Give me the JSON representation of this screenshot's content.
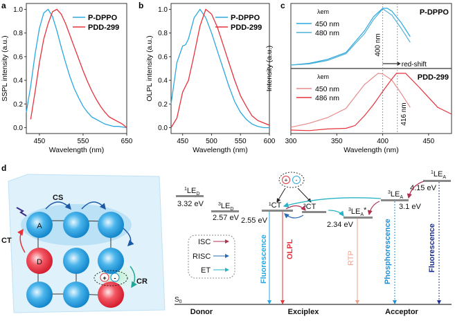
{
  "panel_labels": {
    "a": "a",
    "b": "b",
    "c": "c",
    "d": "d"
  },
  "chart_data": [
    {
      "id": "a",
      "type": "line",
      "xlabel": "Wavelength (nm)",
      "ylabel": "SSPL intensity (a.u.)",
      "xlim": [
        420,
        650
      ],
      "ylim": [
        -0.05,
        1.05
      ],
      "xticks": [
        450,
        550,
        650
      ],
      "yticks": [
        0.0,
        0.2,
        0.4,
        0.6,
        0.8,
        1.0
      ],
      "ytick_labels": [
        "0.0",
        "0.2",
        "0.4",
        "0.6",
        "0.8",
        "1.0"
      ],
      "legend_position": "top-right",
      "series": [
        {
          "name": "P-DPPO",
          "color": "#29a8e0",
          "x": [
            420,
            430,
            440,
            450,
            460,
            470,
            480,
            490,
            500,
            510,
            520,
            530,
            540,
            550,
            560,
            570,
            580,
            590,
            600,
            610,
            620,
            630,
            640,
            650
          ],
          "y": [
            0.13,
            0.35,
            0.62,
            0.84,
            0.97,
            1.0,
            0.94,
            0.82,
            0.68,
            0.55,
            0.43,
            0.33,
            0.25,
            0.18,
            0.13,
            0.09,
            0.07,
            0.05,
            0.03,
            0.02,
            0.01,
            0.01,
            0.005,
            0.0
          ]
        },
        {
          "name": "PDD-299",
          "color": "#e8313b",
          "x": [
            430,
            440,
            450,
            460,
            470,
            480,
            490,
            500,
            510,
            520,
            530,
            540,
            550,
            560,
            570,
            580,
            590,
            600,
            610,
            620,
            630,
            640,
            650
          ],
          "y": [
            0.07,
            0.3,
            0.55,
            0.75,
            0.88,
            0.98,
            1.0,
            0.96,
            0.88,
            0.78,
            0.68,
            0.58,
            0.48,
            0.39,
            0.31,
            0.24,
            0.18,
            0.13,
            0.09,
            0.07,
            0.05,
            0.03,
            0.0
          ]
        }
      ]
    },
    {
      "id": "b",
      "type": "line",
      "xlabel": "Wavelength (nm)",
      "ylabel": "OLPL intensity (a.u.)",
      "xlim": [
        430,
        600
      ],
      "ylim": [
        -0.05,
        1.05
      ],
      "xticks": [
        450,
        500,
        550,
        600
      ],
      "yticks": [
        0.0,
        0.2,
        0.4,
        0.6,
        0.8,
        1.0
      ],
      "ytick_labels": [
        "0.0",
        "0.2",
        "0.4",
        "0.6",
        "0.8",
        "1.0"
      ],
      "legend_position": "top-right",
      "series": [
        {
          "name": "P-DPPO",
          "color": "#29a8e0",
          "x": [
            430,
            440,
            450,
            455,
            460,
            470,
            480,
            490,
            500,
            510,
            520,
            530,
            540,
            550,
            560,
            570,
            580,
            590,
            600
          ],
          "y": [
            0.2,
            0.55,
            0.69,
            0.7,
            0.75,
            0.93,
            1.0,
            0.93,
            0.8,
            0.65,
            0.5,
            0.35,
            0.22,
            0.13,
            0.07,
            0.03,
            0.01,
            0.0,
            0.0
          ]
        },
        {
          "name": "PDD-299",
          "color": "#e8313b",
          "x": [
            430,
            440,
            450,
            460,
            470,
            480,
            490,
            500,
            510,
            520,
            530,
            540,
            550,
            560,
            570,
            580,
            590,
            600
          ],
          "y": [
            0.0,
            0.08,
            0.3,
            0.4,
            0.62,
            0.86,
            1.0,
            0.96,
            0.85,
            0.7,
            0.55,
            0.4,
            0.27,
            0.18,
            0.1,
            0.06,
            0.04,
            0.02
          ]
        }
      ]
    },
    {
      "id": "c",
      "type": "line",
      "xlabel": "Wavelength (nm)",
      "ylabel": "Intensity (a.u.)",
      "xlim": [
        300,
        475
      ],
      "xticks": [
        300,
        350,
        400,
        450
      ],
      "subplots": [
        {
          "label": "P-DPPO",
          "legend_title": "λem",
          "series": [
            {
              "name": "450 nm",
              "color": "#29a8e0",
              "x": [
                300,
                320,
                340,
                360,
                380,
                390,
                400,
                405,
                410,
                420,
                430
              ],
              "y": [
                0.0,
                0.03,
                0.1,
                0.22,
                0.6,
                0.85,
                1.0,
                1.0,
                0.95,
                0.75,
                0.5
              ]
            },
            {
              "name": "480 nm",
              "color": "#4fb0d8",
              "x": [
                300,
                320,
                340,
                360,
                380,
                390,
                400,
                410,
                420,
                430
              ],
              "y": [
                0.0,
                0.02,
                0.08,
                0.2,
                0.55,
                0.8,
                0.99,
                0.88,
                0.65,
                0.4
              ]
            }
          ],
          "annotations": [
            "400 nm",
            "red-shift"
          ]
        },
        {
          "label": "PDD-299",
          "legend_title": "λem",
          "series": [
            {
              "name": "450 nm",
              "color": "#e88a8a",
              "x": [
                300,
                320,
                340,
                360,
                380,
                395,
                400,
                410,
                420,
                430
              ],
              "y": [
                0.05,
                0.12,
                0.22,
                0.38,
                0.8,
                1.0,
                0.99,
                0.88,
                0.65,
                0.4
              ]
            },
            {
              "name": "486 nm",
              "color": "#e8313b",
              "x": [
                300,
                320,
                340,
                360,
                370,
                380,
                390,
                400,
                410,
                415,
                425,
                440,
                460,
                475
              ],
              "y": [
                0.0,
                -0.01,
                0.02,
                0.03,
                0.08,
                0.25,
                0.45,
                0.68,
                0.9,
                1.0,
                1.0,
                0.75,
                0.4,
                0.28
              ]
            }
          ],
          "annotations": [
            "416 nm"
          ]
        }
      ],
      "vlines": [
        400,
        416
      ]
    }
  ],
  "diagram": {
    "cube_labels": {
      "A": "A",
      "D": "D",
      "CS": "CS",
      "CT": "CT",
      "CR": "CR",
      "plus": "+",
      "minus": "-"
    },
    "levels": [
      {
        "label": "¹LE",
        "sub": "D",
        "energy": "3.32 eV"
      },
      {
        "label": "³LE",
        "sub": "D",
        "energy": "2.57 eV"
      },
      {
        "label": "¹CT",
        "sub": "",
        "energy": "2.55 eV"
      },
      {
        "label": "³CT",
        "sub": "",
        "energy": ""
      },
      {
        "label": "³LE",
        "sub": "A",
        "sup2": "*",
        "energy": "2.34 eV"
      },
      {
        "label": "³LE",
        "sub": "A",
        "energy": "3.1 eV"
      },
      {
        "label": "¹LE",
        "sub": "A",
        "energy": "4.15 eV"
      }
    ],
    "legend": [
      {
        "name": "ISC",
        "color": "#b0304f"
      },
      {
        "name": "RISC",
        "color": "#2a6bb5"
      },
      {
        "name": "ET",
        "color": "#26b3c6"
      }
    ],
    "transitions": [
      {
        "name": "Fluorescence",
        "color": "#29a8e0"
      },
      {
        "name": "OLPL",
        "color": "#e8313b"
      },
      {
        "name": "RTP",
        "color": "#f0a08a"
      },
      {
        "name": "Phosphorescence",
        "color": "#1f8fd6"
      },
      {
        "name": "Fluorescence",
        "color": "#1a2e8f"
      }
    ],
    "ground": "S",
    "ground_sub": "0",
    "columns": [
      "Donor",
      "Exciplex",
      "Acceptor"
    ]
  }
}
